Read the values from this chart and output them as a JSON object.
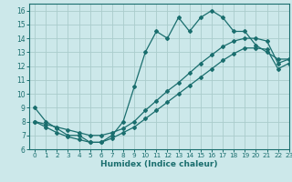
{
  "xlabel": "Humidex (Indice chaleur)",
  "bg_color": "#cce8ea",
  "grid_color": "#aacccc",
  "line_color": "#1a6e6e",
  "xlim": [
    -0.5,
    23
  ],
  "ylim": [
    6,
    16.5
  ],
  "xticks": [
    0,
    1,
    2,
    3,
    4,
    5,
    6,
    7,
    8,
    9,
    10,
    11,
    12,
    13,
    14,
    15,
    16,
    17,
    18,
    19,
    20,
    21,
    22,
    23
  ],
  "yticks": [
    6,
    7,
    8,
    9,
    10,
    11,
    12,
    13,
    14,
    15,
    16
  ],
  "line1_x": [
    0,
    1,
    2,
    3,
    4,
    5,
    6,
    7,
    8,
    9,
    10,
    11,
    12,
    13,
    14,
    15,
    16,
    17,
    18,
    19,
    20,
    21,
    22,
    23
  ],
  "line1_y": [
    9,
    8,
    7.5,
    7,
    7,
    6.5,
    6.5,
    7,
    8,
    10.5,
    13,
    14.5,
    14,
    15.5,
    14.5,
    15.5,
    16,
    15.5,
    14.5,
    14.5,
    13.5,
    13,
    12.5,
    12.5
  ],
  "line2_x": [
    0,
    1,
    2,
    3,
    4,
    5,
    6,
    7,
    8,
    9,
    10,
    11,
    12,
    13,
    14,
    15,
    16,
    17,
    18,
    19,
    20,
    21,
    22,
    23
  ],
  "line2_y": [
    8,
    7.8,
    7.6,
    7.4,
    7.2,
    7.0,
    7.0,
    7.2,
    7.5,
    8.0,
    8.8,
    9.5,
    10.2,
    10.8,
    11.5,
    12.2,
    12.8,
    13.4,
    13.8,
    14.0,
    14.0,
    13.8,
    12.2,
    12.5
  ],
  "line3_x": [
    0,
    1,
    2,
    3,
    4,
    5,
    6,
    7,
    8,
    9,
    10,
    11,
    12,
    13,
    14,
    15,
    16,
    17,
    18,
    19,
    20,
    21,
    22,
    23
  ],
  "line3_y": [
    8,
    7.6,
    7.2,
    6.9,
    6.7,
    6.5,
    6.5,
    6.8,
    7.2,
    7.6,
    8.2,
    8.8,
    9.4,
    10.0,
    10.6,
    11.2,
    11.8,
    12.4,
    12.9,
    13.3,
    13.3,
    13.2,
    11.8,
    12.2
  ]
}
